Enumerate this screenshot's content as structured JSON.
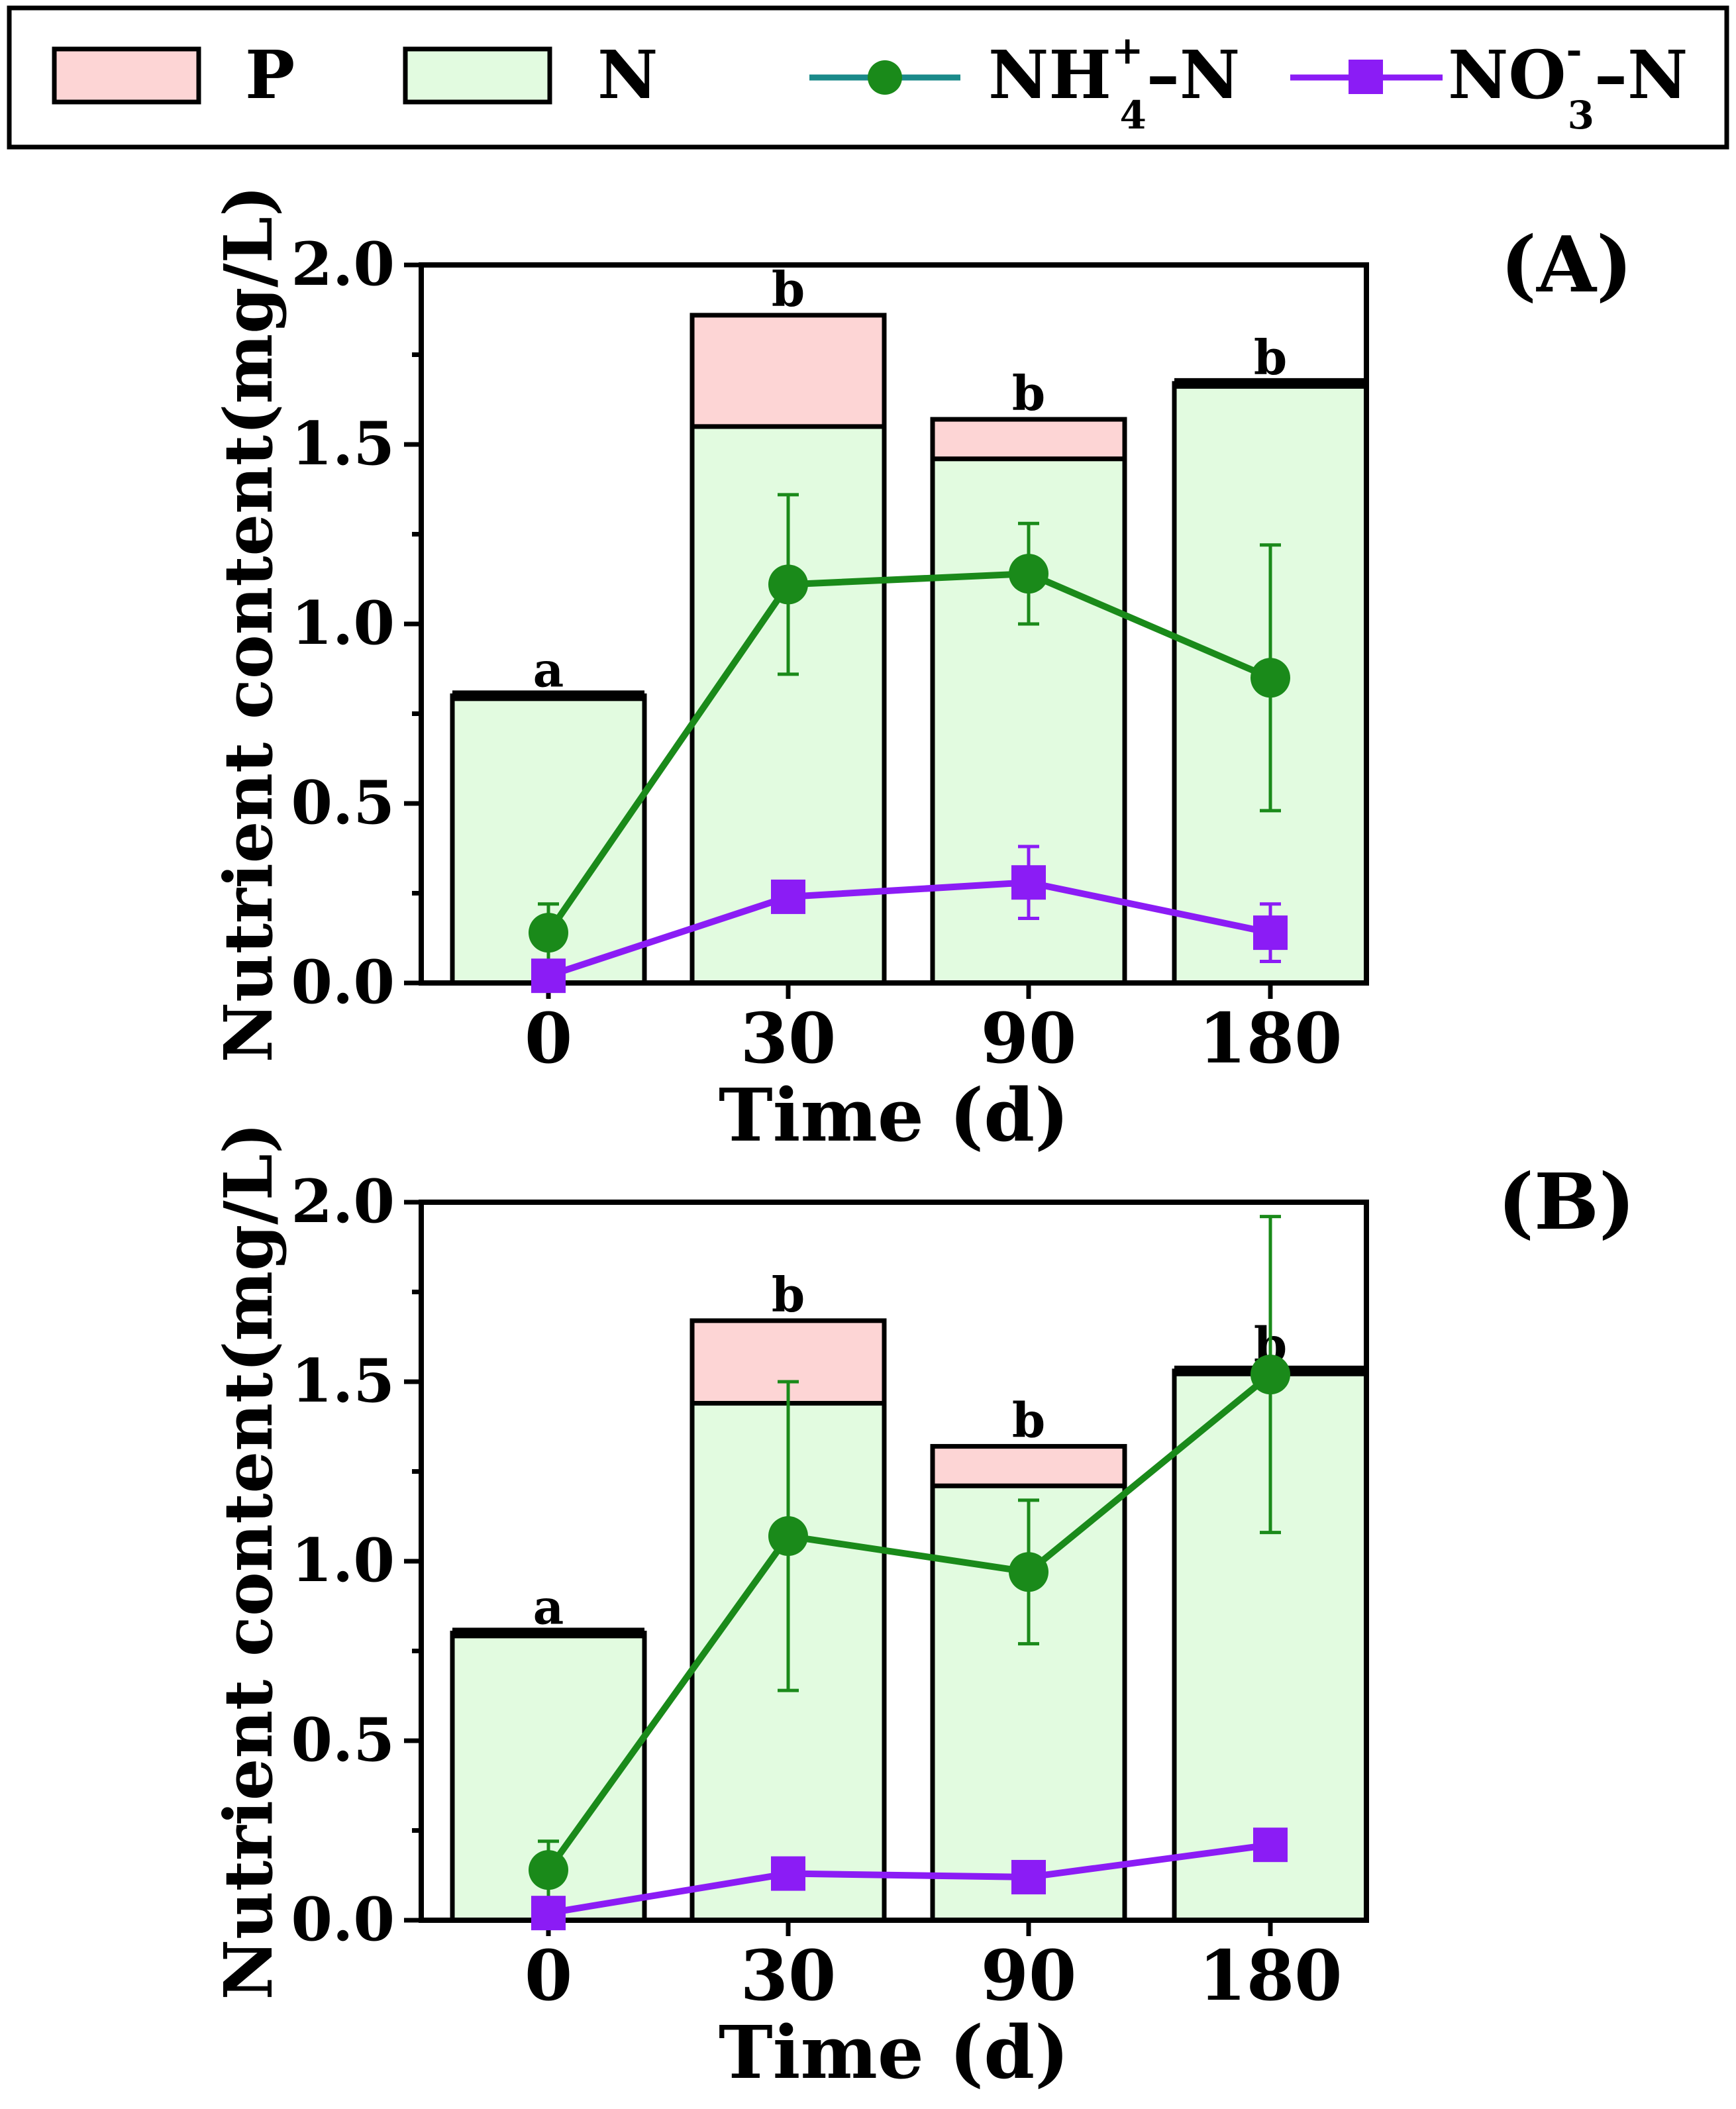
{
  "legend": {
    "items": [
      {
        "label": "P",
        "kind": "box",
        "fill": "#fdd5d5",
        "stroke": "#000000"
      },
      {
        "label": "N",
        "kind": "box",
        "fill": "#e2fbe0",
        "stroke": "#000000"
      },
      {
        "label": "NH",
        "sup": "+",
        "sub": "4",
        "suffix": "–N",
        "kind": "line-circle",
        "color": "#1a8a1a",
        "line": "#1a8a8a"
      },
      {
        "label": "NO",
        "sup": "-",
        "sub": "3",
        "suffix": "–N",
        "kind": "line-square",
        "color": "#8b1cf5",
        "line": "#8b1cf5"
      }
    ]
  },
  "chart_data": [
    {
      "type": "bar+line",
      "panel_label": "(A)",
      "categories": [
        "0",
        "30",
        "90",
        "180"
      ],
      "xlabel": "Time (d)",
      "ylabel": "Nutrient content(mg/L)",
      "ylim": [
        0,
        2.0
      ],
      "yticks": [
        "0.0",
        "0.5",
        "1.0",
        "1.5",
        "2.0"
      ],
      "stacked_bars": {
        "N": [
          0.8,
          1.55,
          1.46,
          1.67
        ],
        "P": [
          0.0,
          0.31,
          0.11,
          0.0
        ],
        "letters": [
          "a",
          "b",
          "b",
          "b"
        ]
      },
      "series": [
        {
          "name": "NH4+-N",
          "values": [
            0.14,
            1.11,
            1.14,
            0.85
          ],
          "err": [
            0.08,
            0.25,
            0.14,
            0.37
          ]
        },
        {
          "name": "NO3--N",
          "values": [
            0.02,
            0.24,
            0.28,
            0.14
          ],
          "err": [
            0.0,
            0.0,
            0.1,
            0.08
          ]
        }
      ]
    },
    {
      "type": "bar+line",
      "panel_label": "(B)",
      "categories": [
        "0",
        "30",
        "90",
        "180"
      ],
      "xlabel": "Time (d)",
      "ylabel": "Nutrient content(mg/L)",
      "ylim": [
        0,
        2.0
      ],
      "yticks": [
        "0.0",
        "0.5",
        "1.0",
        "1.5",
        "2.0"
      ],
      "stacked_bars": {
        "N": [
          0.8,
          1.44,
          1.21,
          1.53
        ],
        "P": [
          0.0,
          0.23,
          0.11,
          0.0
        ],
        "letters": [
          "a",
          "b",
          "b",
          "b"
        ]
      },
      "series": [
        {
          "name": "NH4+-N",
          "values": [
            0.14,
            1.07,
            0.97,
            1.52
          ],
          "err": [
            0.08,
            0.43,
            0.2,
            0.44
          ]
        },
        {
          "name": "NO3--N",
          "values": [
            0.02,
            0.13,
            0.12,
            0.21
          ],
          "err": [
            0.0,
            0.0,
            0.0,
            0.0
          ]
        }
      ]
    }
  ]
}
